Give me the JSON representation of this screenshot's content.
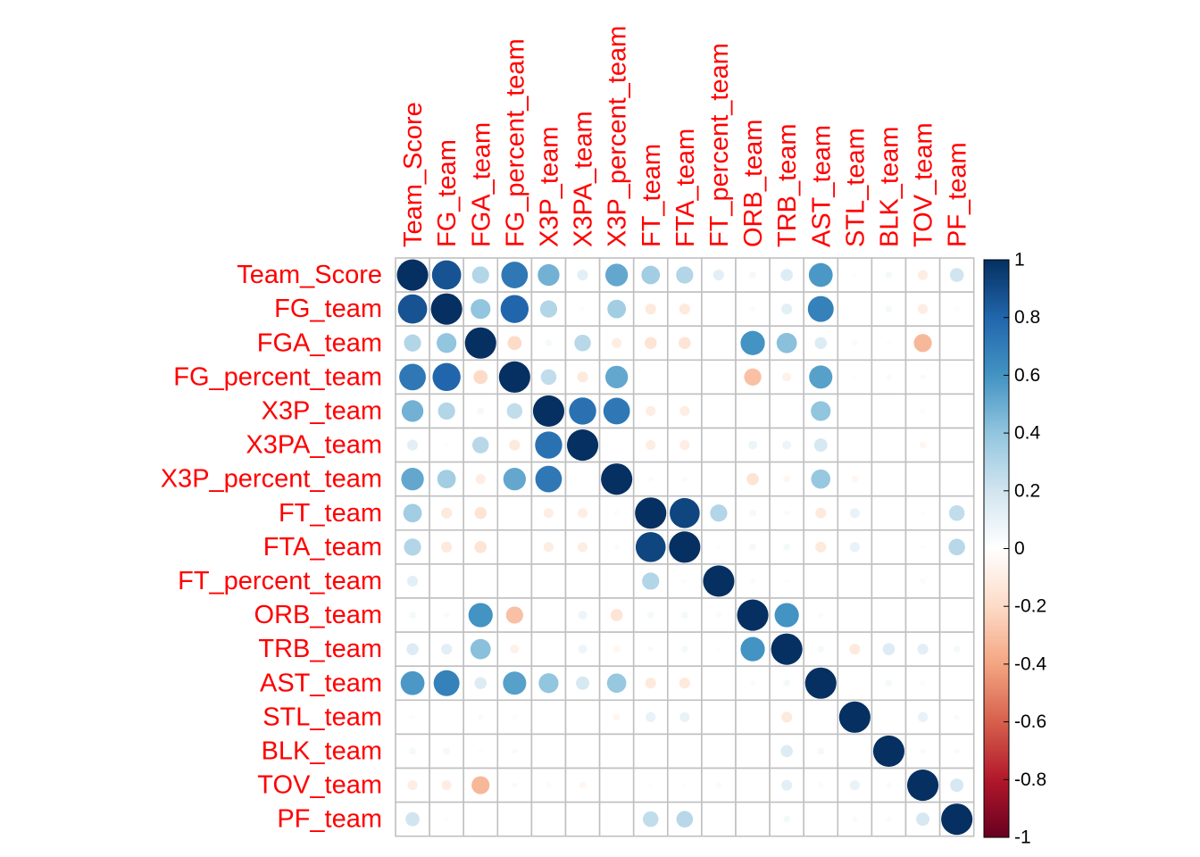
{
  "chart_data": {
    "type": "heatmap",
    "variables": [
      "Team_Score",
      "FG_team",
      "FGA_team",
      "FG_percent_team",
      "X3P_team",
      "X3PA_team",
      "X3P_percent_team",
      "FT_team",
      "FTA_team",
      "FT_percent_team",
      "ORB_team",
      "TRB_team",
      "AST_team",
      "STL_team",
      "BLK_team",
      "TOV_team",
      "PF_team"
    ],
    "matrix": [
      [
        1.0,
        0.87,
        0.3,
        0.72,
        0.48,
        0.12,
        0.52,
        0.35,
        0.3,
        0.12,
        0.05,
        0.15,
        0.58,
        0.02,
        0.05,
        -0.1,
        0.2
      ],
      [
        0.87,
        1.0,
        0.4,
        0.8,
        0.3,
        0.02,
        0.35,
        -0.12,
        -0.12,
        0.0,
        0.03,
        0.12,
        0.68,
        0.0,
        0.05,
        -0.1,
        0.02
      ],
      [
        0.3,
        0.4,
        1.0,
        -0.2,
        0.05,
        0.28,
        -0.1,
        -0.15,
        -0.15,
        0.0,
        0.6,
        0.42,
        0.15,
        0.03,
        0.02,
        -0.33,
        0.0
      ],
      [
        0.72,
        0.8,
        -0.2,
        1.0,
        0.25,
        -0.12,
        0.52,
        0.0,
        0.0,
        0.0,
        -0.3,
        -0.08,
        0.55,
        -0.02,
        0.03,
        0.03,
        0.0
      ],
      [
        0.48,
        0.3,
        0.05,
        0.25,
        1.0,
        0.75,
        0.72,
        -0.1,
        -0.1,
        0.0,
        0.0,
        0.0,
        0.4,
        0.0,
        0.0,
        -0.03,
        0.0
      ],
      [
        0.12,
        0.02,
        0.28,
        -0.12,
        0.75,
        1.0,
        0.0,
        -0.1,
        -0.1,
        0.0,
        0.08,
        0.08,
        0.18,
        0.0,
        0.0,
        -0.05,
        0.0
      ],
      [
        0.52,
        0.35,
        -0.1,
        0.52,
        0.72,
        0.0,
        1.0,
        -0.03,
        -0.03,
        0.0,
        -0.15,
        -0.05,
        0.38,
        -0.05,
        0.0,
        0.0,
        0.0
      ],
      [
        0.35,
        -0.12,
        -0.15,
        0.0,
        -0.1,
        -0.1,
        -0.03,
        1.0,
        0.92,
        0.3,
        0.05,
        0.03,
        -0.12,
        0.1,
        0.0,
        0.02,
        0.25
      ],
      [
        0.3,
        -0.12,
        -0.15,
        0.0,
        -0.1,
        -0.1,
        -0.03,
        0.92,
        1.0,
        -0.02,
        0.05,
        0.05,
        -0.12,
        0.1,
        0.0,
        0.02,
        0.28
      ],
      [
        0.12,
        0.0,
        0.0,
        0.0,
        0.0,
        0.0,
        0.0,
        0.3,
        -0.02,
        1.0,
        -0.03,
        -0.02,
        0.0,
        0.0,
        0.0,
        -0.03,
        0.0
      ],
      [
        0.05,
        0.03,
        0.6,
        -0.3,
        0.0,
        0.08,
        -0.15,
        0.05,
        0.05,
        -0.03,
        1.0,
        0.6,
        -0.03,
        0.0,
        0.0,
        0.0,
        0.0
      ],
      [
        0.15,
        0.12,
        0.42,
        -0.08,
        0.0,
        0.08,
        -0.05,
        0.03,
        0.05,
        -0.02,
        0.6,
        1.0,
        0.05,
        -0.12,
        0.15,
        0.12,
        0.05
      ],
      [
        0.58,
        0.68,
        0.15,
        0.55,
        0.4,
        0.18,
        0.38,
        -0.12,
        -0.12,
        0.0,
        -0.03,
        0.05,
        1.0,
        0.0,
        0.05,
        -0.03,
        0.0
      ],
      [
        0.02,
        0.0,
        0.03,
        -0.02,
        0.0,
        0.0,
        -0.05,
        0.1,
        0.1,
        0.0,
        0.0,
        -0.12,
        0.0,
        1.0,
        0.0,
        0.1,
        0.03
      ],
      [
        0.05,
        0.05,
        0.02,
        0.03,
        0.0,
        0.0,
        0.0,
        0.0,
        0.0,
        0.0,
        0.0,
        0.15,
        0.05,
        0.0,
        1.0,
        0.03,
        0.03
      ],
      [
        -0.1,
        -0.1,
        -0.33,
        0.03,
        -0.03,
        -0.05,
        0.0,
        0.02,
        0.02,
        -0.03,
        0.0,
        0.12,
        -0.03,
        0.1,
        0.03,
        1.0,
        0.18
      ],
      [
        0.2,
        0.02,
        0.0,
        0.0,
        0.0,
        0.0,
        0.0,
        0.25,
        0.28,
        0.0,
        0.0,
        0.05,
        0.0,
        0.03,
        0.03,
        0.18,
        1.0
      ]
    ],
    "color_scale": {
      "min": -1,
      "max": 1,
      "ticks": [
        "1",
        "0.8",
        "0.6",
        "0.4",
        "0.2",
        "0",
        "-0.2",
        "-0.4",
        "-0.6",
        "-0.8",
        "-1"
      ],
      "colors": [
        "#67001F",
        "#B2182B",
        "#D6604D",
        "#F4A582",
        "#FDDBC7",
        "#FFFFFF",
        "#D1E5F0",
        "#92C5DE",
        "#4393C3",
        "#2166AC",
        "#053061"
      ]
    },
    "label_color": "#FF0000",
    "grid_color": "#C0C0C0"
  }
}
